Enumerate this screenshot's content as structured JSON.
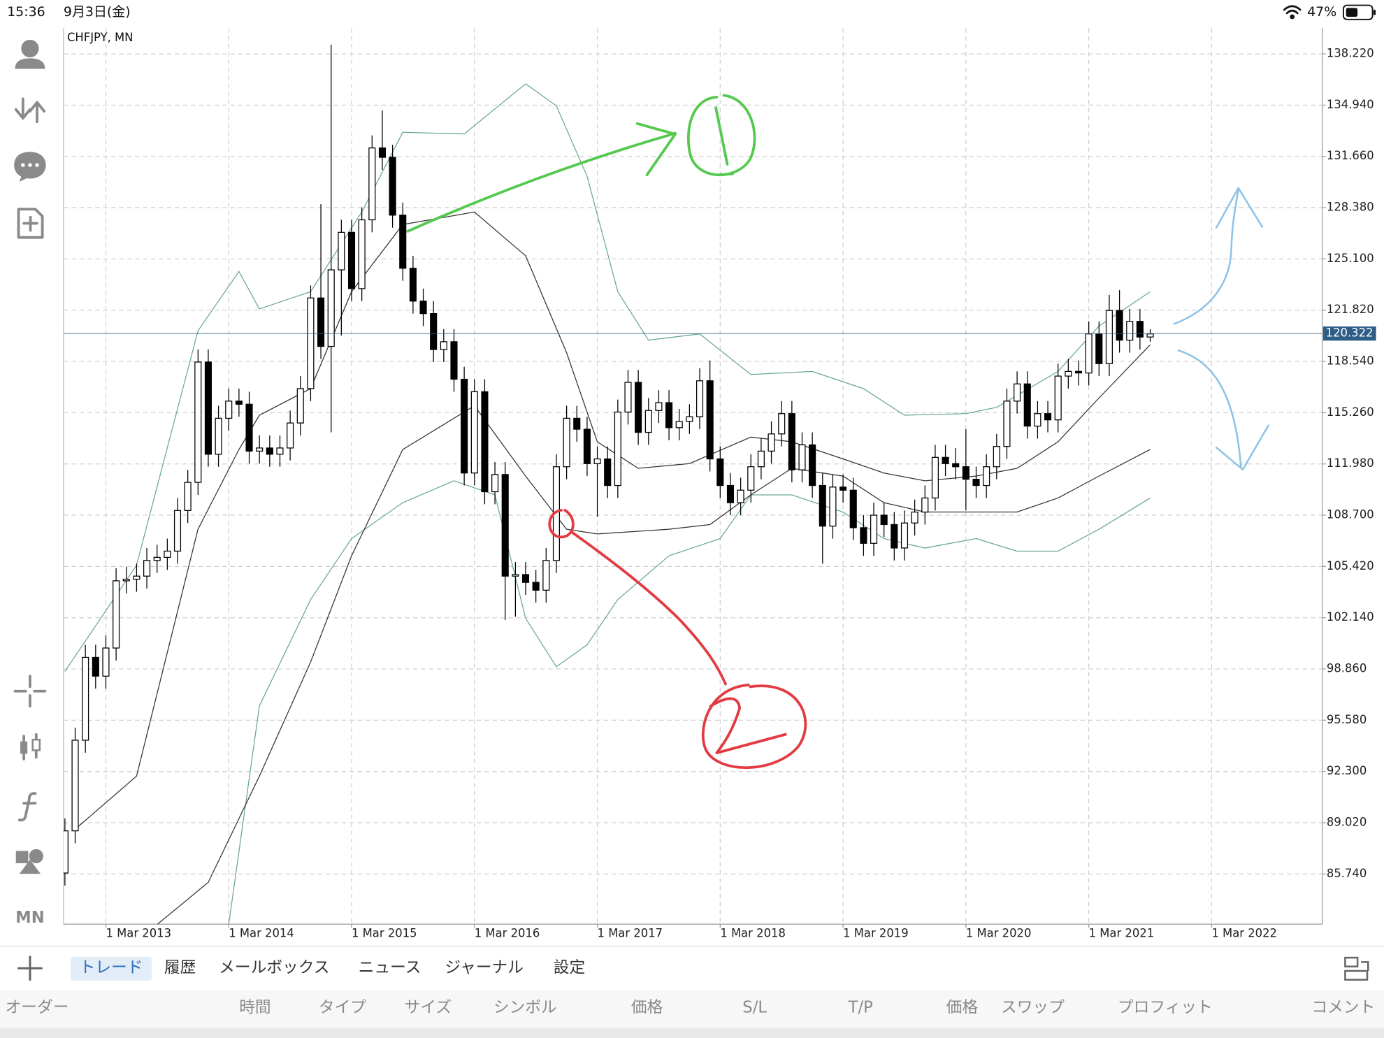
{
  "status_bar": {
    "time": "15:36",
    "date": "9月3日(金)",
    "battery": "47%"
  },
  "chart_data": {
    "type": "candlestick",
    "title": "CHFJPY, MN",
    "x": [
      "2012-11",
      "2012-12",
      "2013-01",
      "2013-02",
      "2013-03",
      "2013-04",
      "2013-05",
      "2013-06",
      "2013-07",
      "2013-08",
      "2013-09",
      "2013-10",
      "2013-11",
      "2013-12",
      "2014-01",
      "2014-02",
      "2014-03",
      "2014-04",
      "2014-05",
      "2014-06",
      "2014-07",
      "2014-08",
      "2014-09",
      "2014-10",
      "2014-11",
      "2014-12",
      "2015-01",
      "2015-02",
      "2015-03",
      "2015-04",
      "2015-05",
      "2015-06",
      "2015-07",
      "2015-08",
      "2015-09",
      "2015-10",
      "2015-11",
      "2015-12",
      "2016-01",
      "2016-02",
      "2016-03",
      "2016-04",
      "2016-05",
      "2016-06",
      "2016-07",
      "2016-08",
      "2016-09",
      "2016-10",
      "2016-11",
      "2016-12",
      "2017-01",
      "2017-02",
      "2017-03",
      "2017-04",
      "2017-05",
      "2017-06",
      "2017-07",
      "2017-08",
      "2017-09",
      "2017-10",
      "2017-11",
      "2017-12",
      "2018-01",
      "2018-02",
      "2018-03",
      "2018-04",
      "2018-05",
      "2018-06",
      "2018-07",
      "2018-08",
      "2018-09",
      "2018-10",
      "2018-11",
      "2018-12",
      "2019-01",
      "2019-02",
      "2019-03",
      "2019-04",
      "2019-05",
      "2019-06",
      "2019-07",
      "2019-08",
      "2019-09",
      "2019-10",
      "2019-11",
      "2019-12",
      "2020-01",
      "2020-02",
      "2020-03",
      "2020-04",
      "2020-05",
      "2020-06",
      "2020-07",
      "2020-08",
      "2020-09",
      "2020-10",
      "2020-11",
      "2020-12",
      "2021-01",
      "2021-02",
      "2021-03",
      "2021-04",
      "2021-05",
      "2021-06",
      "2021-07",
      "2021-08",
      "2021-09"
    ],
    "candles": [
      [
        85.8,
        89.3,
        85.0,
        88.5
      ],
      [
        88.5,
        95.1,
        87.7,
        94.3
      ],
      [
        94.3,
        100.4,
        93.5,
        99.6
      ],
      [
        99.6,
        100.4,
        97.6,
        98.4
      ],
      [
        98.4,
        101.0,
        97.6,
        100.2
      ],
      [
        100.2,
        105.3,
        99.4,
        104.5
      ],
      [
        104.5,
        105.4,
        103.7,
        104.6
      ],
      [
        104.6,
        105.6,
        103.8,
        104.8
      ],
      [
        104.8,
        106.6,
        104.0,
        105.8
      ],
      [
        105.8,
        106.8,
        105.0,
        106.0
      ],
      [
        106.0,
        107.2,
        105.2,
        106.4
      ],
      [
        106.4,
        109.8,
        105.6,
        109.0
      ],
      [
        109.0,
        111.6,
        108.2,
        110.8
      ],
      [
        110.8,
        119.3,
        110.0,
        118.5
      ],
      [
        118.5,
        119.3,
        111.8,
        112.6
      ],
      [
        112.6,
        115.7,
        111.8,
        114.9
      ],
      [
        114.9,
        116.8,
        114.1,
        116.0
      ],
      [
        116.0,
        116.8,
        115.0,
        115.8
      ],
      [
        115.8,
        116.6,
        112.0,
        112.8
      ],
      [
        112.8,
        113.8,
        112.0,
        113.0
      ],
      [
        113.0,
        113.8,
        111.8,
        112.6
      ],
      [
        112.6,
        113.8,
        111.8,
        113.0
      ],
      [
        113.0,
        115.4,
        112.2,
        114.6
      ],
      [
        114.6,
        117.6,
        113.8,
        116.8
      ],
      [
        116.8,
        123.4,
        116.0,
        122.6
      ],
      [
        122.6,
        128.6,
        118.7,
        119.5
      ],
      [
        119.5,
        138.8,
        114.0,
        124.4
      ],
      [
        124.4,
        127.6,
        120.2,
        126.8
      ],
      [
        126.8,
        127.6,
        122.4,
        123.2
      ],
      [
        123.2,
        128.4,
        122.4,
        127.6
      ],
      [
        127.6,
        133.0,
        126.8,
        132.2
      ],
      [
        132.2,
        134.6,
        130.8,
        131.6
      ],
      [
        131.6,
        132.4,
        127.1,
        127.9
      ],
      [
        127.9,
        128.7,
        123.7,
        124.5
      ],
      [
        124.5,
        125.3,
        121.6,
        122.4
      ],
      [
        122.4,
        123.2,
        120.8,
        121.6
      ],
      [
        121.6,
        122.4,
        118.5,
        119.3
      ],
      [
        119.3,
        120.6,
        118.5,
        119.8
      ],
      [
        119.8,
        120.6,
        116.6,
        117.4
      ],
      [
        117.4,
        118.2,
        110.6,
        111.4
      ],
      [
        111.4,
        117.4,
        110.6,
        116.6
      ],
      [
        116.6,
        117.4,
        109.4,
        110.2
      ],
      [
        110.2,
        112.1,
        109.4,
        111.3
      ],
      [
        111.3,
        112.1,
        102.0,
        104.8
      ],
      [
        104.8,
        105.7,
        102.2,
        104.9
      ],
      [
        104.9,
        105.7,
        103.6,
        104.4
      ],
      [
        104.4,
        105.2,
        103.1,
        103.9
      ],
      [
        103.9,
        106.6,
        103.1,
        105.8
      ],
      [
        105.8,
        112.6,
        105.0,
        111.8
      ],
      [
        111.8,
        115.7,
        111.0,
        114.9
      ],
      [
        114.9,
        115.7,
        113.4,
        114.2
      ],
      [
        114.2,
        115.0,
        111.2,
        112.0
      ],
      [
        112.0,
        113.1,
        108.6,
        112.3
      ],
      [
        112.3,
        113.1,
        109.8,
        110.6
      ],
      [
        110.6,
        116.1,
        109.8,
        115.3
      ],
      [
        115.3,
        118.0,
        114.5,
        117.2
      ],
      [
        117.2,
        118.0,
        113.2,
        114.0
      ],
      [
        114.0,
        116.2,
        113.2,
        115.4
      ],
      [
        115.4,
        116.7,
        114.6,
        115.9
      ],
      [
        115.9,
        116.7,
        113.5,
        114.3
      ],
      [
        114.3,
        115.5,
        113.5,
        114.7
      ],
      [
        114.7,
        115.8,
        113.9,
        115.0
      ],
      [
        115.0,
        118.1,
        114.2,
        117.3
      ],
      [
        117.3,
        118.6,
        111.5,
        112.3
      ],
      [
        112.3,
        113.1,
        109.8,
        110.6
      ],
      [
        110.6,
        111.4,
        108.7,
        109.5
      ],
      [
        109.5,
        111.1,
        108.7,
        110.3
      ],
      [
        110.3,
        112.6,
        109.5,
        111.8
      ],
      [
        111.8,
        113.6,
        111.0,
        112.8
      ],
      [
        112.8,
        114.7,
        112.0,
        113.9
      ],
      [
        113.9,
        116.0,
        113.1,
        115.2
      ],
      [
        115.2,
        116.0,
        110.8,
        111.6
      ],
      [
        111.6,
        114.0,
        110.8,
        113.2
      ],
      [
        113.2,
        114.0,
        109.8,
        110.6
      ],
      [
        110.6,
        111.4,
        105.6,
        108.0
      ],
      [
        108.0,
        111.3,
        107.2,
        110.5
      ],
      [
        110.5,
        111.3,
        109.5,
        110.3
      ],
      [
        110.3,
        111.1,
        107.1,
        107.9
      ],
      [
        107.9,
        108.7,
        106.1,
        106.9
      ],
      [
        106.9,
        109.5,
        106.1,
        108.7
      ],
      [
        108.7,
        109.5,
        107.3,
        108.1
      ],
      [
        108.1,
        108.9,
        105.8,
        106.6
      ],
      [
        106.6,
        109.0,
        105.8,
        108.2
      ],
      [
        108.2,
        109.7,
        107.4,
        108.9
      ],
      [
        108.9,
        110.6,
        108.1,
        109.8
      ],
      [
        109.8,
        113.2,
        109.0,
        112.4
      ],
      [
        112.4,
        113.2,
        111.2,
        112.0
      ],
      [
        112.0,
        113.0,
        111.0,
        111.8
      ],
      [
        111.8,
        114.2,
        109.0,
        111.0
      ],
      [
        111.0,
        111.8,
        109.8,
        110.6
      ],
      [
        110.6,
        112.6,
        109.8,
        111.8
      ],
      [
        111.8,
        113.9,
        111.0,
        113.1
      ],
      [
        113.1,
        116.8,
        112.3,
        116.0
      ],
      [
        116.0,
        117.9,
        115.2,
        117.1
      ],
      [
        117.1,
        117.9,
        113.6,
        114.4
      ],
      [
        114.4,
        116.0,
        113.6,
        115.2
      ],
      [
        115.2,
        116.0,
        114.0,
        114.8
      ],
      [
        114.8,
        118.4,
        114.0,
        117.6
      ],
      [
        117.6,
        118.7,
        116.8,
        117.9
      ],
      [
        117.9,
        118.6,
        117.0,
        117.8
      ],
      [
        117.8,
        121.1,
        117.0,
        120.3
      ],
      [
        120.3,
        121.1,
        117.6,
        118.4
      ],
      [
        118.4,
        122.8,
        117.6,
        121.8
      ],
      [
        121.8,
        123.1,
        119.1,
        119.9
      ],
      [
        119.9,
        121.9,
        119.1,
        121.1
      ],
      [
        121.1,
        121.9,
        119.3,
        120.1
      ],
      [
        120.1,
        120.6,
        119.8,
        120.3
      ]
    ],
    "up_color": "#ffffff",
    "down_color": "#000000",
    "lines": [
      {
        "color": "#6aa88e",
        "x": [
          "2012-11",
          "2013-06",
          "2013-12",
          "2014-04",
          "2014-06",
          "2014-11",
          "2015-04",
          "2015-08",
          "2016-02",
          "2016-08",
          "2016-11",
          "2017-02",
          "2017-05",
          "2017-08",
          "2018-01",
          "2018-06",
          "2018-12",
          "2019-05",
          "2019-09",
          "2020-03",
          "2020-06",
          "2020-12",
          "2021-04",
          "2021-09"
        ],
        "values": [
          98.7,
          105.5,
          120.5,
          124.3,
          121.9,
          123.0,
          128.1,
          133.2,
          133.1,
          136.3,
          134.9,
          130.4,
          123.0,
          119.9,
          120.3,
          117.7,
          117.9,
          116.8,
          115.1,
          115.2,
          115.6,
          117.9,
          120.8,
          123.0
        ]
      },
      {
        "color": "#6aa88e",
        "x": [
          "2014-03",
          "2014-06",
          "2014-11",
          "2015-03",
          "2015-08",
          "2016-01",
          "2016-05",
          "2016-08",
          "2016-11",
          "2017-02",
          "2017-05",
          "2017-10",
          "2018-03",
          "2018-06",
          "2018-10",
          "2019-03",
          "2019-07",
          "2019-11",
          "2020-04",
          "2020-08",
          "2020-12",
          "2021-04",
          "2021-09"
        ],
        "values": [
          82.5,
          96.5,
          103.3,
          107.2,
          109.5,
          110.9,
          110.0,
          102.1,
          99.0,
          100.4,
          103.3,
          106.1,
          107.2,
          110.0,
          110.0,
          108.9,
          107.2,
          106.6,
          107.2,
          106.4,
          106.4,
          107.8,
          109.8
        ]
      },
      {
        "color": "#333333",
        "x": [
          "2012-12",
          "2013-06",
          "2013-12",
          "2014-04",
          "2014-06",
          "2014-11",
          "2015-03",
          "2015-08",
          "2016-03",
          "2016-08",
          "2016-12",
          "2017-03",
          "2017-07",
          "2017-12",
          "2018-06",
          "2018-10",
          "2019-03",
          "2019-07",
          "2019-11",
          "2020-04",
          "2020-08",
          "2020-12",
          "2021-04",
          "2021-09"
        ],
        "values": [
          88.6,
          92.0,
          107.8,
          112.9,
          115.1,
          116.8,
          123.0,
          127.3,
          128.1,
          125.3,
          119.1,
          113.4,
          111.7,
          112.0,
          113.7,
          113.4,
          112.3,
          111.4,
          110.9,
          111.2,
          111.7,
          113.4,
          116.2,
          119.6
        ]
      },
      {
        "color": "#333333",
        "x": [
          "2013-08",
          "2014-01",
          "2014-06",
          "2014-11",
          "2015-03",
          "2015-08",
          "2016-03",
          "2016-08",
          "2016-12",
          "2017-03",
          "2017-10",
          "2018-02",
          "2018-06",
          "2018-10",
          "2019-03",
          "2019-07",
          "2019-11",
          "2020-04",
          "2020-08",
          "2020-12",
          "2021-04",
          "2021-09"
        ],
        "values": [
          82.5,
          85.2,
          92.0,
          99.3,
          106.1,
          112.9,
          115.7,
          111.2,
          107.8,
          107.5,
          107.8,
          108.1,
          110.0,
          111.7,
          111.2,
          109.5,
          108.9,
          108.9,
          108.9,
          109.8,
          111.2,
          112.9
        ]
      }
    ],
    "current_price": {
      "value": 120.322,
      "label": "120.322"
    },
    "current_color": "#2e5d86",
    "xlim": [
      "2012-10-27",
      "2023-01-25"
    ],
    "ylim": [
      82.53,
      139.86
    ],
    "xticks": [
      {
        "value": "2013-03-01",
        "label": "1 Mar 2013"
      },
      {
        "value": "2014-03-01",
        "label": "1 Mar 2014"
      },
      {
        "value": "2015-03-01",
        "label": "1 Mar 2015"
      },
      {
        "value": "2016-03-01",
        "label": "1 Mar 2016"
      },
      {
        "value": "2017-03-01",
        "label": "1 Mar 2017"
      },
      {
        "value": "2018-03-01",
        "label": "1 Mar 2018"
      },
      {
        "value": "2019-03-01",
        "label": "1 Mar 2019"
      },
      {
        "value": "2020-03-01",
        "label": "1 Mar 2020"
      },
      {
        "value": "2021-03-01",
        "label": "1 Mar 2021"
      },
      {
        "value": "2022-03-01",
        "label": "1 Mar 2022"
      }
    ],
    "yticks": [
      {
        "value": 138.22,
        "label": "138.220"
      },
      {
        "value": 134.94,
        "label": "134.940"
      },
      {
        "value": 131.66,
        "label": "131.660"
      },
      {
        "value": 128.38,
        "label": "128.380"
      },
      {
        "value": 125.1,
        "label": "125.100"
      },
      {
        "value": 121.82,
        "label": "121.820"
      },
      {
        "value": 118.54,
        "label": "118.540"
      },
      {
        "value": 115.26,
        "label": "115.260"
      },
      {
        "value": 111.98,
        "label": "111.980"
      },
      {
        "value": 108.7,
        "label": "108.700"
      },
      {
        "value": 105.42,
        "label": "105.420"
      },
      {
        "value": 102.14,
        "label": "102.140"
      },
      {
        "value": 98.86,
        "label": "98.860"
      },
      {
        "value": 95.58,
        "label": "95.580"
      },
      {
        "value": 92.3,
        "label": "92.300"
      },
      {
        "value": 89.02,
        "label": "89.020"
      },
      {
        "value": 85.74,
        "label": "85.740"
      }
    ],
    "grid": true
  },
  "toolbar": {
    "timeframe": "MN"
  },
  "tabs": [
    "トレード",
    "履歴",
    "メールボックス",
    "ニュース",
    "ジャーナル",
    "設定"
  ],
  "active_tab": 0,
  "table": {
    "columns": [
      "オーダー",
      "時間",
      "タイプ",
      "サイズ",
      "シンボル",
      "価格",
      "S/L",
      "T/P",
      "価格",
      "スワップ",
      "プロフィット",
      "コメント"
    ]
  }
}
